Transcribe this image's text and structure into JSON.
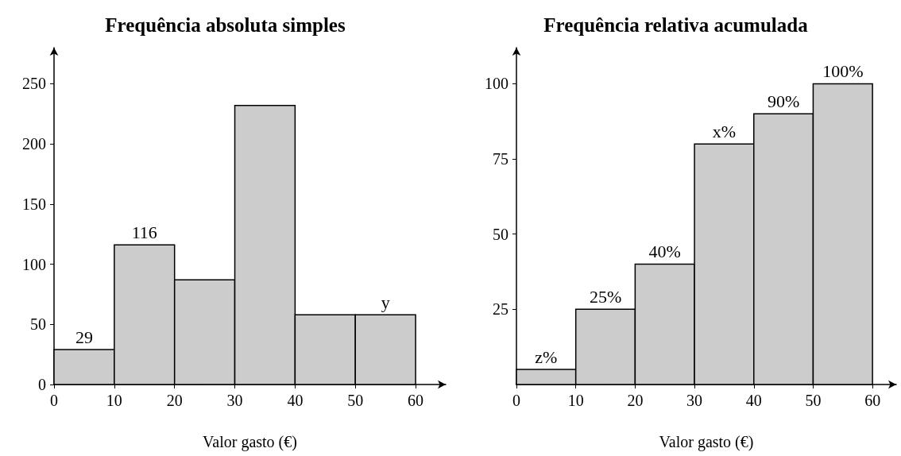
{
  "chart_data": [
    {
      "type": "histogram",
      "title": "Frequência absoluta simples",
      "xlabel": "Valor gasto (€)",
      "bins": [
        0,
        10,
        20,
        30,
        40,
        50,
        60
      ],
      "values": [
        29,
        116,
        87,
        232,
        58,
        58
      ],
      "value_labels": [
        "29",
        "116",
        null,
        null,
        null,
        "y"
      ],
      "color": "#cccccc",
      "xlim": [
        0,
        65
      ],
      "xticks": [
        0,
        10,
        20,
        30,
        40,
        50,
        60
      ],
      "ylim": [
        0,
        280
      ],
      "yticks": [
        0,
        50,
        100,
        150,
        200,
        250
      ],
      "grid": false
    },
    {
      "type": "histogram",
      "title": "Frequência relativa acumulada",
      "xlabel": "Valor gasto (€)",
      "bins": [
        0,
        10,
        20,
        30,
        40,
        50,
        60
      ],
      "values": [
        5,
        25,
        40,
        80,
        90,
        100
      ],
      "value_labels": [
        "z%",
        "25%",
        "40%",
        "x%",
        "90%",
        "100%"
      ],
      "color": "#cccccc",
      "xlim": [
        0,
        64
      ],
      "xticks": [
        0,
        10,
        20,
        30,
        40,
        50,
        60
      ],
      "ylim": [
        0,
        112
      ],
      "yticks": [
        25,
        50,
        75,
        100
      ],
      "grid": false
    }
  ]
}
